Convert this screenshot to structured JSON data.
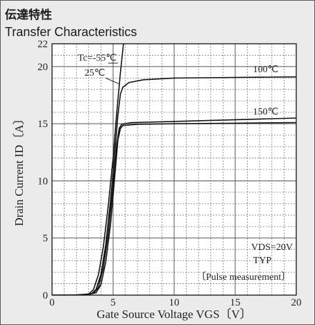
{
  "title_jp": "伝達特性",
  "title_en": "Transfer Characteristics",
  "chart_data": {
    "type": "line",
    "xlabel": "Gate Source Voltage  VGS〔V〕",
    "ylabel": "Drain Current  ID〔A〕",
    "xlim": [
      0,
      20
    ],
    "ylim": [
      0,
      22
    ],
    "x_ticks": [
      0,
      5,
      10,
      15,
      20
    ],
    "y_ticks": [
      0,
      5,
      10,
      15,
      20,
      22
    ],
    "grid": true,
    "series": [
      {
        "name": "Tc=-55℃",
        "points": [
          [
            0,
            0
          ],
          [
            2,
            0.02
          ],
          [
            3,
            0.1
          ],
          [
            3.4,
            0.5
          ],
          [
            3.8,
            1.8
          ],
          [
            4.2,
            4.2
          ],
          [
            4.6,
            7.8
          ],
          [
            5,
            12
          ],
          [
            5.3,
            16
          ],
          [
            5.6,
            19.5
          ],
          [
            5.9,
            22.5
          ]
        ]
      },
      {
        "name": "25℃",
        "points": [
          [
            0,
            0
          ],
          [
            2.2,
            0.02
          ],
          [
            3.2,
            0.1
          ],
          [
            3.6,
            0.5
          ],
          [
            4,
            1.8
          ],
          [
            4.4,
            4.4
          ],
          [
            4.8,
            8.4
          ],
          [
            5.1,
            12
          ],
          [
            5.4,
            15.8
          ],
          [
            5.6,
            17.6
          ],
          [
            5.8,
            18.2
          ],
          [
            6.3,
            18.6
          ],
          [
            7.5,
            18.85
          ],
          [
            10,
            19
          ],
          [
            15,
            19.05
          ],
          [
            20,
            19.1
          ]
        ]
      },
      {
        "name": "100℃",
        "points": [
          [
            0,
            0
          ],
          [
            2.4,
            0.02
          ],
          [
            3.4,
            0.15
          ],
          [
            3.8,
            0.7
          ],
          [
            4.2,
            2.4
          ],
          [
            4.6,
            5.4
          ],
          [
            5,
            9.6
          ],
          [
            5.3,
            13.2
          ],
          [
            5.5,
            14.6
          ],
          [
            5.7,
            14.95
          ],
          [
            6.5,
            15.1
          ],
          [
            10,
            15.2
          ],
          [
            15,
            15.35
          ],
          [
            20,
            15.5
          ]
        ]
      },
      {
        "name": "150℃",
        "points": [
          [
            0,
            0
          ],
          [
            2.6,
            0.03
          ],
          [
            3.6,
            0.2
          ],
          [
            4,
            0.9
          ],
          [
            4.4,
            2.9
          ],
          [
            4.8,
            6.3
          ],
          [
            5.1,
            10
          ],
          [
            5.4,
            13.6
          ],
          [
            5.6,
            14.6
          ],
          [
            5.8,
            14.85
          ],
          [
            7,
            14.95
          ],
          [
            10,
            15.0
          ],
          [
            15,
            15.05
          ],
          [
            20,
            15.1
          ]
        ]
      }
    ],
    "annotations": {
      "vds": "VDS=20V",
      "typ": "TYP",
      "pulse": "〔Pulse measurement〕"
    }
  }
}
